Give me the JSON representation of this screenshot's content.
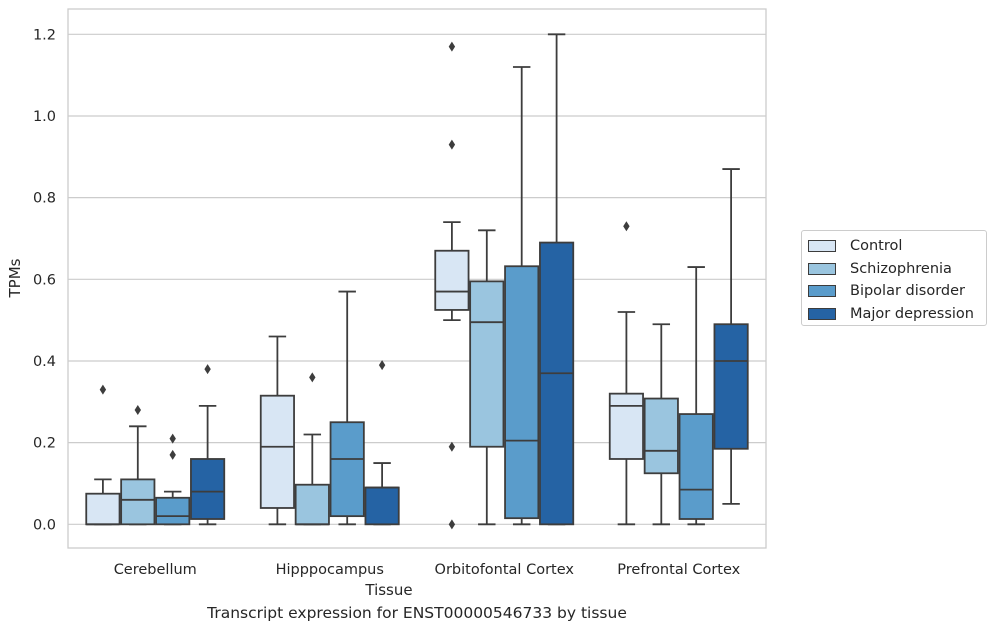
{
  "chart_data": {
    "type": "boxplot",
    "xlabel": "Tissue",
    "ylabel": "TPMs",
    "ylim": [
      -0.058,
      1.262
    ],
    "yticks": [
      0.0,
      0.2,
      0.4,
      0.6,
      0.8,
      1.0,
      1.2
    ],
    "ytick_labels": [
      "0.0",
      "0.2",
      "0.4",
      "0.6",
      "0.8",
      "1.0",
      "1.2"
    ],
    "grid": "horizontal",
    "legend_position": "right",
    "categories": [
      "Cerebellum",
      "Hipppocampus",
      "Orbitofontal Cortex",
      "Prefrontal Cortex"
    ],
    "series": [
      {
        "name": "Control",
        "color": "#d8e6f4",
        "boxes": [
          {
            "whisker_low": 0.0,
            "q1": 0.0,
            "median": 0.0,
            "q3": 0.075,
            "whisker_high": 0.11,
            "outliers": [
              0.33
            ]
          },
          {
            "whisker_low": 0.0,
            "q1": 0.04,
            "median": 0.19,
            "q3": 0.315,
            "whisker_high": 0.46,
            "outliers": []
          },
          {
            "whisker_low": 0.5,
            "q1": 0.525,
            "median": 0.57,
            "q3": 0.67,
            "whisker_high": 0.74,
            "outliers": [
              1.17,
              0.93,
              0.19,
              0.0
            ]
          },
          {
            "whisker_low": 0.0,
            "q1": 0.16,
            "median": 0.29,
            "q3": 0.32,
            "whisker_high": 0.52,
            "outliers": [
              0.73
            ]
          }
        ]
      },
      {
        "name": "Schizophrenia",
        "color": "#9ac5df",
        "boxes": [
          {
            "whisker_low": 0.0,
            "q1": 0.0,
            "median": 0.06,
            "q3": 0.11,
            "whisker_high": 0.24,
            "outliers": [
              0.28
            ]
          },
          {
            "whisker_low": 0.0,
            "q1": 0.0,
            "median": 0.0,
            "q3": 0.097,
            "whisker_high": 0.22,
            "outliers": [
              0.36
            ]
          },
          {
            "whisker_low": 0.0,
            "q1": 0.19,
            "median": 0.495,
            "q3": 0.595,
            "whisker_high": 0.72,
            "outliers": []
          },
          {
            "whisker_low": 0.0,
            "q1": 0.125,
            "median": 0.18,
            "q3": 0.308,
            "whisker_high": 0.49,
            "outliers": []
          }
        ]
      },
      {
        "name": "Bipolar disorder",
        "color": "#5a9ccb",
        "boxes": [
          {
            "whisker_low": 0.0,
            "q1": 0.0,
            "median": 0.02,
            "q3": 0.065,
            "whisker_high": 0.08,
            "outliers": [
              0.21,
              0.17
            ]
          },
          {
            "whisker_low": 0.0,
            "q1": 0.02,
            "median": 0.16,
            "q3": 0.25,
            "whisker_high": 0.57,
            "outliers": []
          },
          {
            "whisker_low": 0.0,
            "q1": 0.015,
            "median": 0.205,
            "q3": 0.632,
            "whisker_high": 1.12,
            "outliers": []
          },
          {
            "whisker_low": 0.0,
            "q1": 0.013,
            "median": 0.085,
            "q3": 0.27,
            "whisker_high": 0.63,
            "outliers": []
          }
        ]
      },
      {
        "name": "Major depression",
        "color": "#2563a4",
        "boxes": [
          {
            "whisker_low": 0.0,
            "q1": 0.013,
            "median": 0.08,
            "q3": 0.16,
            "whisker_high": 0.29,
            "outliers": [
              0.38
            ]
          },
          {
            "whisker_low": 0.0,
            "q1": 0.0,
            "median": 0.09,
            "q3": 0.09,
            "whisker_high": 0.15,
            "outliers": [
              0.39
            ]
          },
          {
            "whisker_low": 0.0,
            "q1": 0.0,
            "median": 0.37,
            "q3": 0.69,
            "whisker_high": 1.2,
            "outliers": []
          },
          {
            "whisker_low": 0.05,
            "q1": 0.185,
            "median": 0.4,
            "q3": 0.49,
            "whisker_high": 0.87,
            "outliers": []
          }
        ]
      }
    ]
  },
  "caption": "Transcript expression for ENST00000546733 by tissue"
}
